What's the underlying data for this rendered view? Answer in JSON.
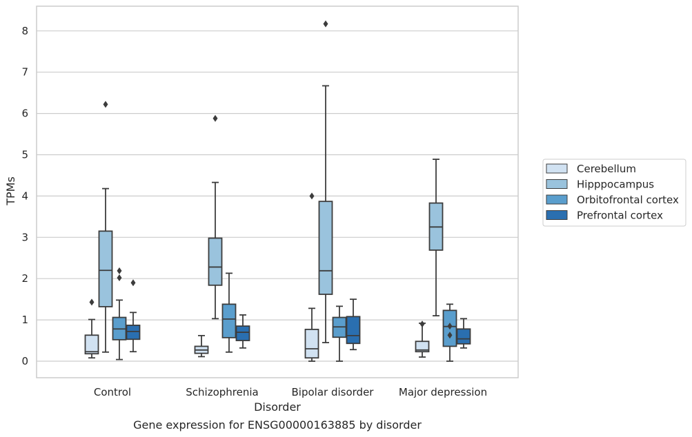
{
  "chart_data": {
    "type": "box",
    "title": "",
    "caption": "Gene expression for ENSG00000163885 by disorder",
    "xlabel": "Disorder",
    "ylabel": "TPMs",
    "ylim": [
      -0.4,
      8.6
    ],
    "yticks": [
      "0",
      "1",
      "2",
      "3",
      "4",
      "5",
      "6",
      "7",
      "8"
    ],
    "grid": "horizontal",
    "legend_position": "right",
    "categories": [
      "Control",
      "Schizophrenia",
      "Bipolar disorder",
      "Major depression"
    ],
    "series": [
      {
        "name": "Cerebellum",
        "color": "#d1e2f2",
        "boxes": [
          {
            "whisker_low": 0.08,
            "q1": 0.18,
            "median": 0.23,
            "q3": 0.63,
            "whisker_high": 1.01,
            "outliers": [
              1.43
            ]
          },
          {
            "whisker_low": 0.11,
            "q1": 0.19,
            "median": 0.27,
            "q3": 0.36,
            "whisker_high": 0.62,
            "outliers": []
          },
          {
            "whisker_low": 0.0,
            "q1": 0.08,
            "median": 0.3,
            "q3": 0.77,
            "whisker_high": 1.28,
            "outliers": [
              4.0
            ]
          },
          {
            "whisker_low": 0.1,
            "q1": 0.23,
            "median": 0.27,
            "q3": 0.48,
            "whisker_high": 0.92,
            "outliers": [
              0.9
            ]
          }
        ]
      },
      {
        "name": "Hipppocampus",
        "color": "#9ac3dd",
        "boxes": [
          {
            "whisker_low": 0.22,
            "q1": 1.32,
            "median": 2.2,
            "q3": 3.15,
            "whisker_high": 4.18,
            "outliers": [
              6.22
            ]
          },
          {
            "whisker_low": 1.03,
            "q1": 1.84,
            "median": 2.28,
            "q3": 2.98,
            "whisker_high": 4.33,
            "outliers": [
              5.88
            ]
          },
          {
            "whisker_low": 0.45,
            "q1": 1.62,
            "median": 2.19,
            "q3": 3.87,
            "whisker_high": 6.67,
            "outliers": [
              8.17
            ]
          },
          {
            "whisker_low": 1.1,
            "q1": 2.69,
            "median": 3.25,
            "q3": 3.83,
            "whisker_high": 4.89,
            "outliers": []
          }
        ]
      },
      {
        "name": "Orbitofrontal cortex",
        "color": "#5a9ecd",
        "boxes": [
          {
            "whisker_low": 0.04,
            "q1": 0.52,
            "median": 0.78,
            "q3": 1.06,
            "whisker_high": 1.48,
            "outliers": [
              2.19,
              2.02
            ]
          },
          {
            "whisker_low": 0.22,
            "q1": 0.57,
            "median": 1.02,
            "q3": 1.38,
            "whisker_high": 2.13,
            "outliers": []
          },
          {
            "whisker_low": 0.0,
            "q1": 0.58,
            "median": 0.83,
            "q3": 1.06,
            "whisker_high": 1.33,
            "outliers": []
          },
          {
            "whisker_low": 0.0,
            "q1": 0.36,
            "median": 0.84,
            "q3": 1.23,
            "whisker_high": 1.38,
            "outliers": [
              0.85,
              0.63
            ]
          }
        ]
      },
      {
        "name": "Prefrontal cortex",
        "color": "#2a6fb0",
        "boxes": [
          {
            "whisker_low": 0.23,
            "q1": 0.53,
            "median": 0.72,
            "q3": 0.87,
            "whisker_high": 1.18,
            "outliers": [
              1.9
            ]
          },
          {
            "whisker_low": 0.32,
            "q1": 0.5,
            "median": 0.7,
            "q3": 0.85,
            "whisker_high": 1.12,
            "outliers": []
          },
          {
            "whisker_low": 0.28,
            "q1": 0.43,
            "median": 0.62,
            "q3": 1.08,
            "whisker_high": 1.5,
            "outliers": []
          },
          {
            "whisker_low": 0.32,
            "q1": 0.42,
            "median": 0.54,
            "q3": 0.78,
            "whisker_high": 1.03,
            "outliers": []
          }
        ]
      }
    ]
  }
}
